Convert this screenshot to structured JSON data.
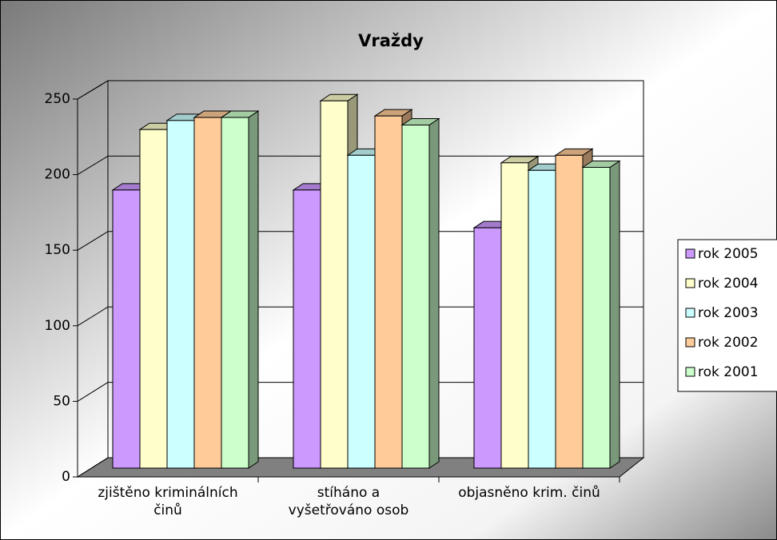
{
  "chart_data": {
    "type": "bar3d",
    "title": "Vraždy",
    "categories": [
      "zjištěno kriminálních\nčinů",
      "stíháno a\nvyšetřováno osob",
      "objasněno krim. činů"
    ],
    "series": [
      {
        "name": "rok 2005",
        "color": "#cc99ff",
        "values": [
          184,
          184,
          159
        ]
      },
      {
        "name": "rok 2004",
        "color": "#ffffcc",
        "values": [
          224,
          243,
          202
        ]
      },
      {
        "name": "rok 2003",
        "color": "#ccffff",
        "values": [
          230,
          207,
          197
        ]
      },
      {
        "name": "rok 2002",
        "color": "#ffcc99",
        "values": [
          232,
          233,
          207
        ]
      },
      {
        "name": "rok 2001",
        "color": "#ccffcc",
        "values": [
          232,
          227,
          199
        ]
      }
    ],
    "ylim": [
      0,
      250
    ],
    "yticks": [
      0,
      50,
      100,
      150,
      200,
      250
    ],
    "grid": true,
    "legend": "right"
  }
}
